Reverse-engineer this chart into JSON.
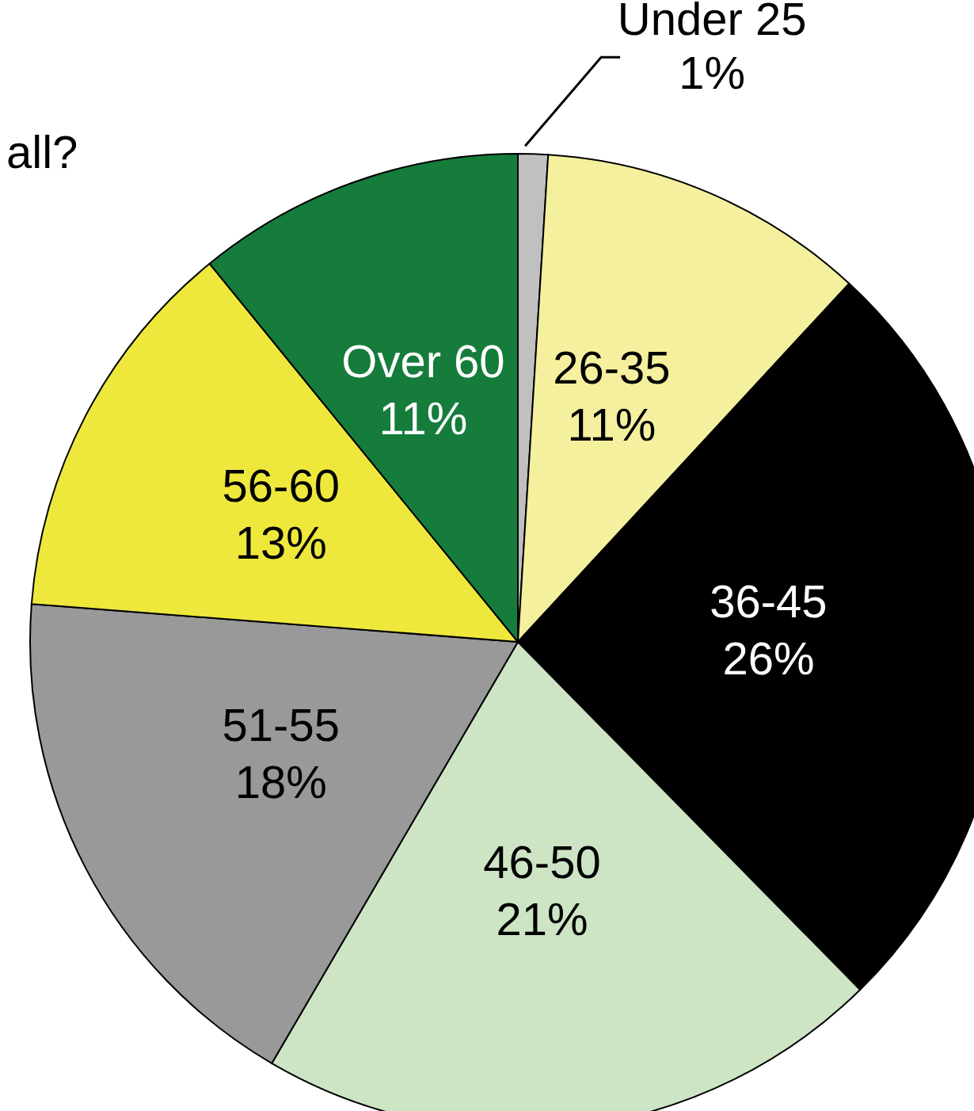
{
  "chart_data": {
    "type": "pie",
    "title": "all?",
    "categories": [
      "Under 25",
      "26-35",
      "36-45",
      "46-50",
      "51-55",
      "56-60",
      "Over 60"
    ],
    "values": [
      1,
      11,
      26,
      21,
      18,
      13,
      11
    ],
    "colors": [
      "#c0c0c0",
      "#f4f09e",
      "#000000",
      "#cde5c4",
      "#999999",
      "#eee83c",
      "#157c3c"
    ],
    "value_labels": [
      "1%",
      "11%",
      "26%",
      "21%",
      "18%",
      "13%",
      "11%"
    ]
  }
}
